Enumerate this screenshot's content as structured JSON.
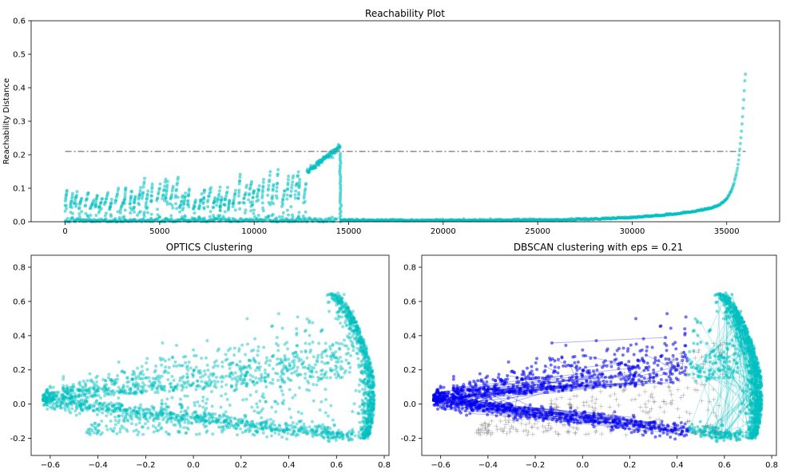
{
  "chart_data": [
    {
      "id": "reachability",
      "type": "scatter",
      "title": "Reachability Plot",
      "xlabel": "",
      "ylabel": "Reachability Distance",
      "xlim": [
        -1800,
        37800
      ],
      "ylim": [
        0,
        0.6
      ],
      "xticks": [
        0,
        5000,
        10000,
        15000,
        20000,
        25000,
        30000,
        35000
      ],
      "yticks": [
        0.0,
        0.1,
        0.2,
        0.3,
        0.4,
        0.5,
        0.6
      ],
      "threshold_line": {
        "y": 0.21,
        "x_range": [
          0,
          36000
        ],
        "color": "#808080",
        "style": "dash-dot"
      },
      "point_color": "#00bfbf",
      "point_count": 36000,
      "profile": [
        {
          "x_range": [
            0,
            3000
          ],
          "y_band": [
            0.0,
            0.115
          ],
          "kind": "sawtooth"
        },
        {
          "x_range": [
            3000,
            6000
          ],
          "y_band": [
            0.0,
            0.14
          ],
          "kind": "sawtooth"
        },
        {
          "x_range": [
            6500,
            9000
          ],
          "y_band": [
            0.0,
            0.12
          ],
          "kind": "sawtooth"
        },
        {
          "x_range": [
            9000,
            10500
          ],
          "y_band": [
            0.0,
            0.15
          ],
          "kind": "sawtooth"
        },
        {
          "x_range": [
            11000,
            12800
          ],
          "y_band": [
            0.0,
            0.155
          ],
          "kind": "sawtooth"
        },
        {
          "x_range": [
            12800,
            14500
          ],
          "y_band": [
            0.15,
            0.225
          ],
          "kind": "rising"
        },
        {
          "x_range": [
            14500,
            36000
          ],
          "y_band": [
            0.0,
            0.44
          ],
          "kind": "sorted-rising"
        }
      ],
      "grid": false,
      "legend": "none"
    },
    {
      "id": "optics",
      "type": "scatter",
      "title": "OPTICS Clustering",
      "xlabel": "",
      "ylabel": "",
      "xlim": [
        -0.68,
        0.82
      ],
      "ylim": [
        -0.3,
        0.87
      ],
      "xticks": [
        -0.6,
        -0.4,
        -0.2,
        0.0,
        0.2,
        0.4,
        0.6,
        0.8
      ],
      "yticks": [
        -0.2,
        0.0,
        0.2,
        0.4,
        0.6,
        0.8
      ],
      "point_color": "#00bfbf",
      "structure": [
        {
          "name": "upper branch",
          "from": [
            -0.63,
            0.02
          ],
          "to": [
            0.72,
            0.62
          ]
        },
        {
          "name": "lower branch",
          "from": [
            -0.63,
            0.02
          ],
          "to": [
            0.75,
            -0.18
          ]
        },
        {
          "name": "dense arc",
          "center": [
            0.76,
            0.0
          ],
          "x_range": [
            0.6,
            0.77
          ],
          "y_range": [
            -0.22,
            0.65
          ]
        }
      ],
      "grid": false,
      "legend": "none"
    },
    {
      "id": "dbscan",
      "type": "scatter",
      "title": "DBSCAN clustering with eps = 0.21",
      "xlabel": "",
      "ylabel": "",
      "xlim": [
        -0.68,
        0.82
      ],
      "ylim": [
        -0.3,
        0.87
      ],
      "xticks": [
        -0.6,
        -0.4,
        -0.2,
        0.0,
        0.2,
        0.4,
        0.6,
        0.8
      ],
      "yticks": [
        -0.2,
        0.0,
        0.2,
        0.4,
        0.6,
        0.8
      ],
      "series_colors": {
        "cluster_0": "#0000ee",
        "cluster_1": "#00bfbf",
        "noise": "#555555"
      },
      "noise_marker": "plus",
      "grid": false,
      "legend": "none"
    }
  ]
}
